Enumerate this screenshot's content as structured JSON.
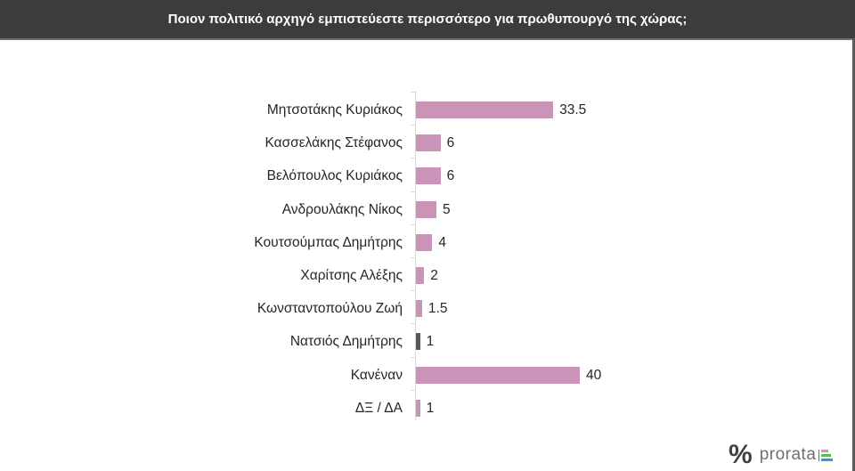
{
  "header": {
    "title": "Ποιον πολιτικό αρχηγό εμπιστεύεστε περισσότερο για πρωθυπουργό της χώρας;"
  },
  "chart_data": {
    "type": "bar",
    "orientation": "horizontal",
    "title": "Ποιον πολιτικό αρχηγό εμπιστεύεστε περισσότερο για πρωθυπουργό της χώρας;",
    "xlabel": "",
    "ylabel": "",
    "grid": false,
    "legend": null,
    "categories": [
      "Μητσοτάκης Κυριάκος",
      "Κασσελάκης Στέφανος",
      "Βελόπουλος Κυριάκος",
      "Ανδρουλάκης Νίκος",
      "Κουτσούμπας Δημήτρης",
      "Χαρίτσης Αλέξης",
      "Κωνσταντοπούλου Ζωή",
      "Νατσιός Δημήτρης",
      "Κανέναν",
      "ΔΞ / ΔΑ"
    ],
    "values": [
      33.5,
      6,
      6,
      5,
      4,
      2,
      1.5,
      1,
      40,
      1
    ],
    "value_labels": [
      "33.5",
      "6",
      "6",
      "5",
      "4",
      "2",
      "1.5",
      "1",
      "40",
      "1"
    ],
    "colors": [
      "#c994b7",
      "#c994b7",
      "#c994b7",
      "#c994b7",
      "#c994b7",
      "#c994b7",
      "#c994b7",
      "#595959",
      "#c994b7",
      "#c994b7"
    ],
    "xlim": [
      0,
      40
    ]
  },
  "brand": {
    "symbol": "%",
    "name": "prorata",
    "bar_colors": [
      "#d98cc0",
      "#5cb85c",
      "#4a90c9"
    ]
  }
}
